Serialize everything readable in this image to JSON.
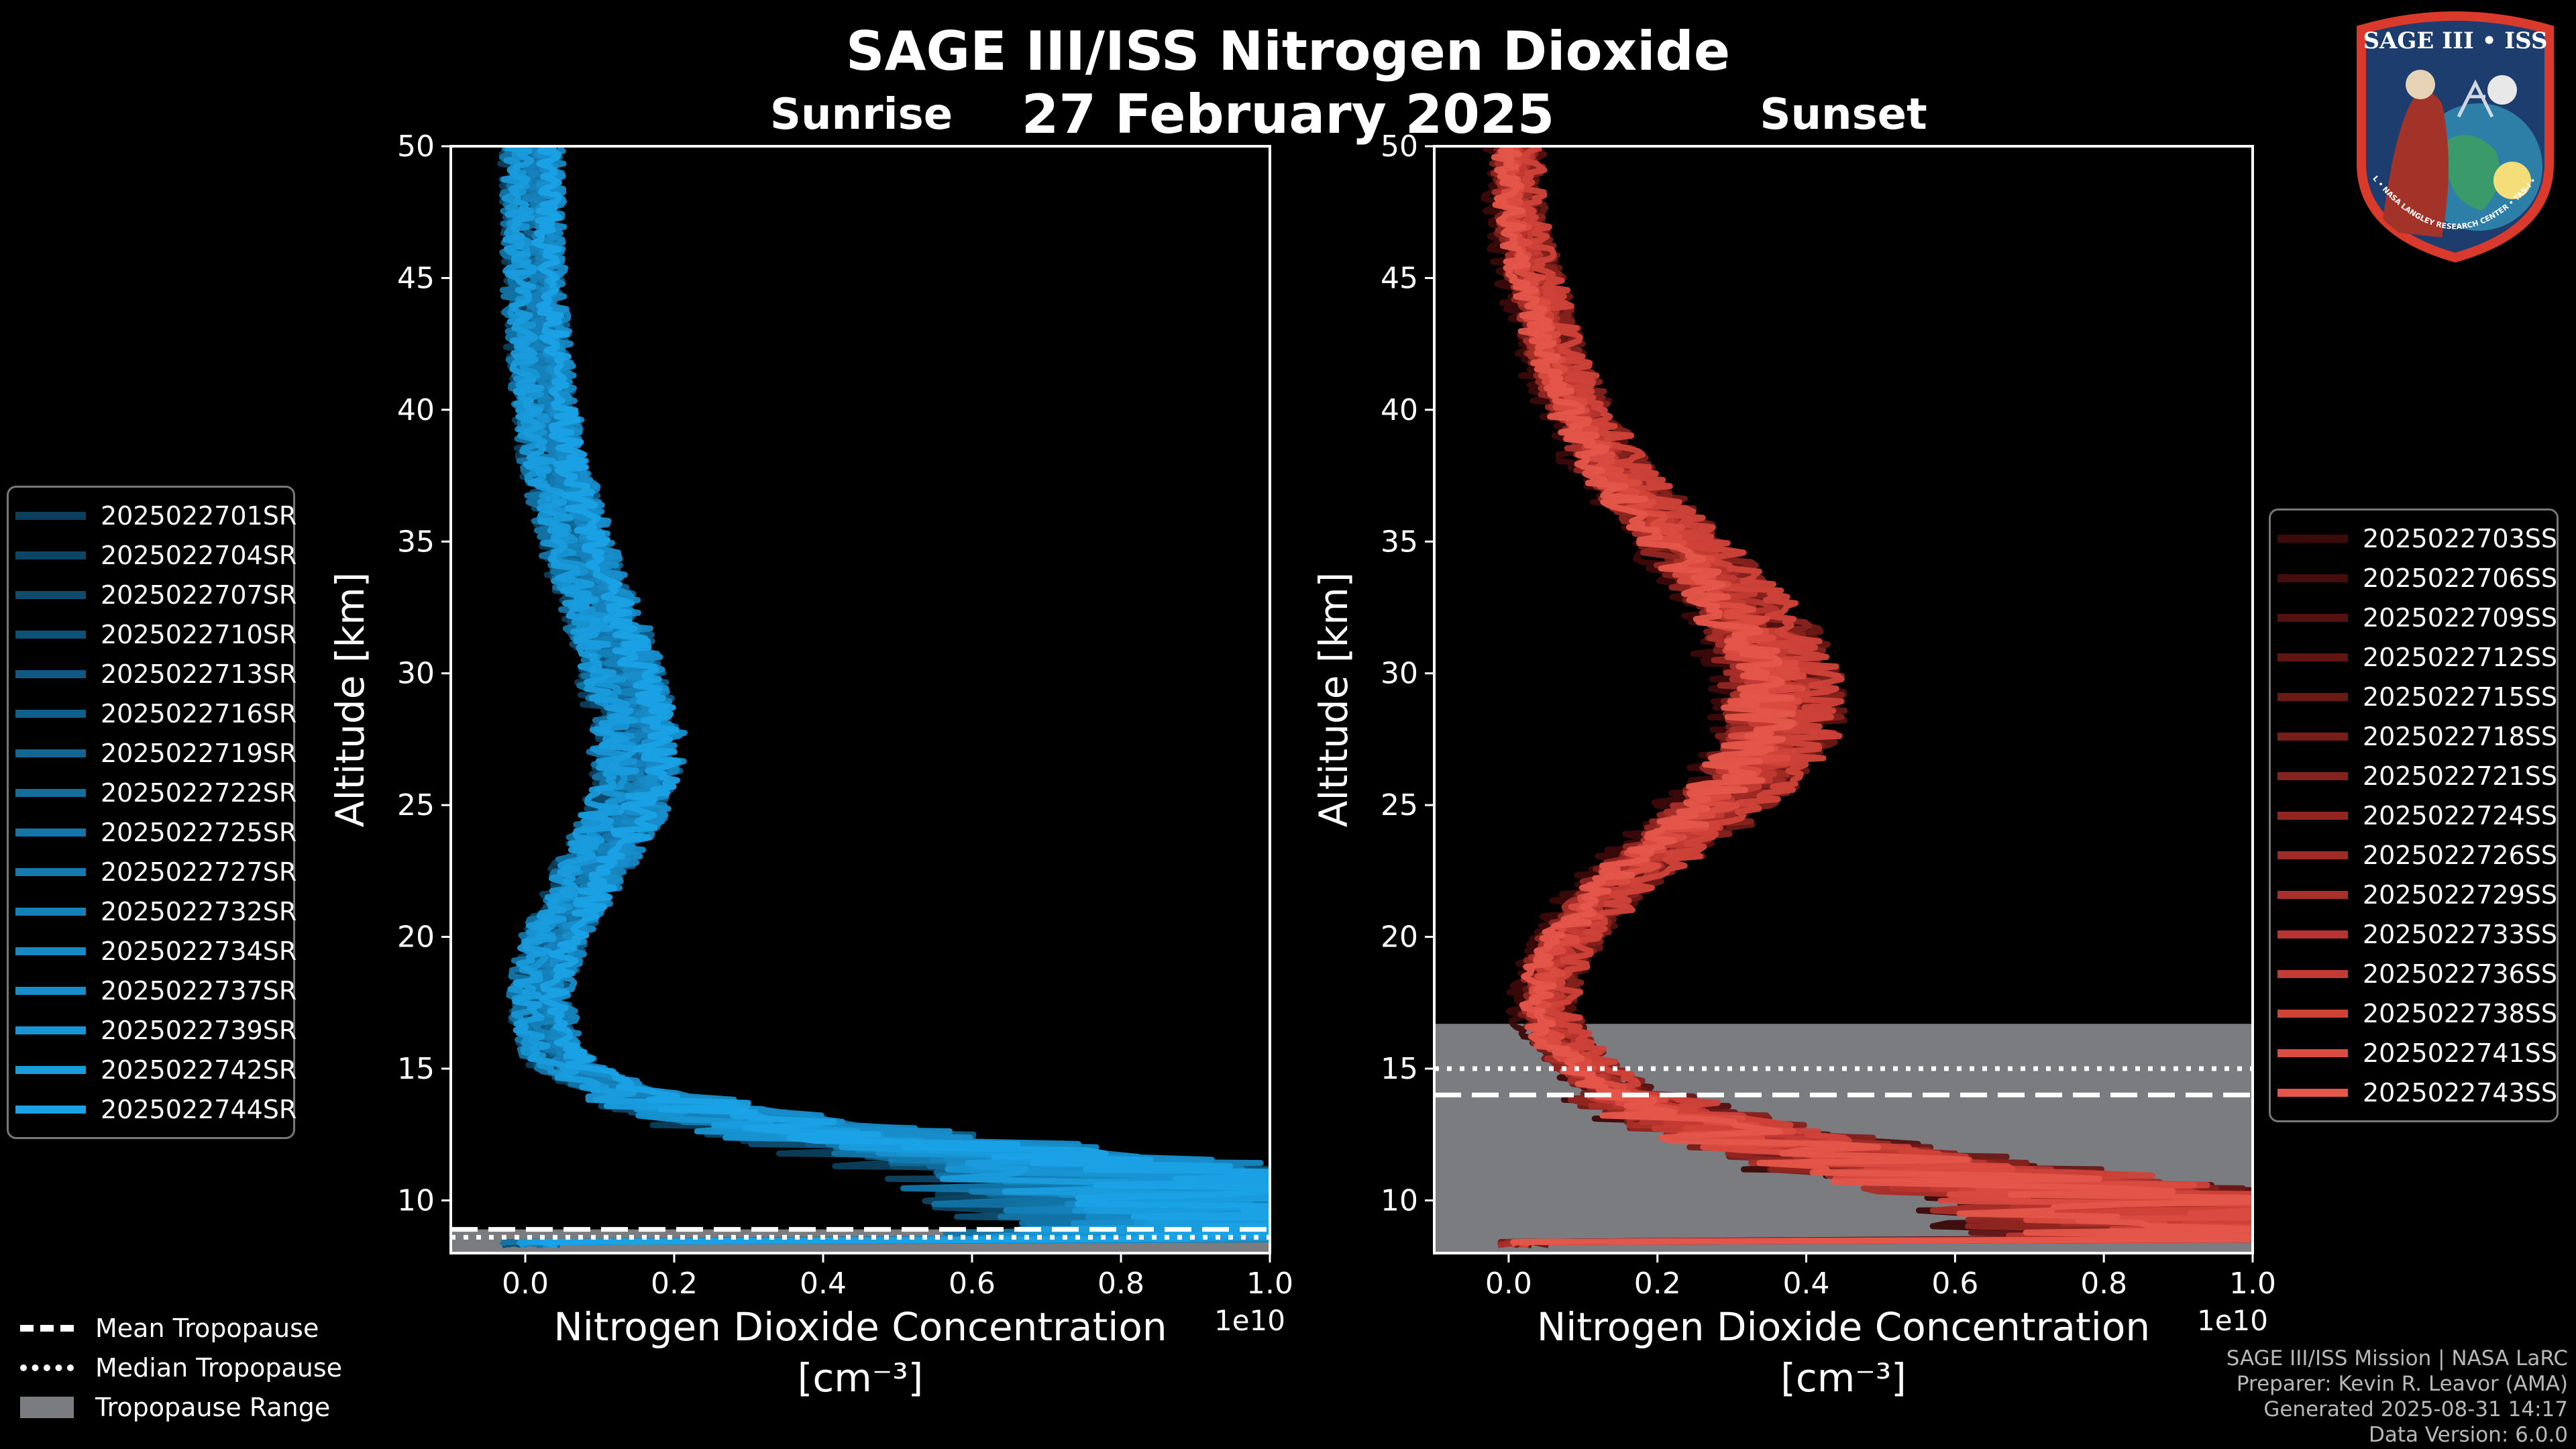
{
  "title": "SAGE III/ISS Nitrogen Dioxide",
  "date": "27 February 2025",
  "logo": {
    "text": "SAGE III • ISS",
    "ring_text": "BALL • NASA LANGLEY RESEARCH CENTER • TAS-I • ESA"
  },
  "colors": {
    "background": "#000000",
    "tropopause_range": "#7b7c80",
    "sunrise_accent": "#1793d5",
    "sunset_accent": "#e5564a"
  },
  "chart_data": [
    {
      "type": "line",
      "panel_title": "Sunrise",
      "xlabel": "Nitrogen Dioxide Concentration",
      "xunit": "[cm⁻³]",
      "x_offset_label": "1e10",
      "ylabel": "Altitude [km]",
      "xlim": [
        -0.1,
        1.0
      ],
      "ylim": [
        8,
        50
      ],
      "x_scale": 10000000000.0,
      "xticks": [
        "0.0",
        "0.2",
        "0.4",
        "0.6",
        "0.8",
        "1.0"
      ],
      "xtick_values": [
        0.0,
        0.2,
        0.4,
        0.6,
        0.8,
        1.0
      ],
      "yticks": [
        "10",
        "15",
        "20",
        "25",
        "30",
        "35",
        "40",
        "45",
        "50"
      ],
      "ytick_values": [
        10,
        15,
        20,
        25,
        30,
        35,
        40,
        45,
        50
      ],
      "profile_altitudes": [
        8.5,
        9,
        10,
        11,
        12,
        13,
        14,
        15,
        16,
        18,
        20,
        22,
        24,
        26,
        28,
        30,
        32,
        34,
        36,
        38,
        40,
        42,
        44,
        46,
        48,
        50
      ],
      "profile_mean": [
        0.95,
        0.95,
        0.9,
        0.8,
        0.55,
        0.3,
        0.15,
        0.06,
        0.03,
        0.02,
        0.04,
        0.08,
        0.12,
        0.15,
        0.15,
        0.13,
        0.11,
        0.08,
        0.06,
        0.04,
        0.03,
        0.02,
        0.015,
        0.012,
        0.01,
        0.01
      ],
      "tropopause": {
        "mean": 8.9,
        "median": 8.6,
        "range": [
          8.0,
          8.9
        ]
      },
      "series": [
        {
          "name": "2025022701SR",
          "color": "#0c3f5c"
        },
        {
          "name": "2025022704SR",
          "color": "#0d4565"
        },
        {
          "name": "2025022707SR",
          "color": "#0e4c6f"
        },
        {
          "name": "2025022710SR",
          "color": "#0f5278"
        },
        {
          "name": "2025022713SR",
          "color": "#105982"
        },
        {
          "name": "2025022716SR",
          "color": "#11608b"
        },
        {
          "name": "2025022719SR",
          "color": "#126694"
        },
        {
          "name": "2025022722SR",
          "color": "#136d9d"
        },
        {
          "name": "2025022725SR",
          "color": "#1374a7"
        },
        {
          "name": "2025022727SR",
          "color": "#147ab0"
        },
        {
          "name": "2025022732SR",
          "color": "#1581b9"
        },
        {
          "name": "2025022734SR",
          "color": "#1688c2"
        },
        {
          "name": "2025022737SR",
          "color": "#178ecb"
        },
        {
          "name": "2025022739SR",
          "color": "#1895d4"
        },
        {
          "name": "2025022742SR",
          "color": "#199cdd"
        },
        {
          "name": "2025022744SR",
          "color": "#1aa2e6"
        }
      ]
    },
    {
      "type": "line",
      "panel_title": "Sunset",
      "xlabel": "Nitrogen Dioxide Concentration",
      "xunit": "[cm⁻³]",
      "x_offset_label": "1e10",
      "ylabel": "Altitude [km]",
      "xlim": [
        -0.1,
        1.0
      ],
      "ylim": [
        8,
        50
      ],
      "x_scale": 10000000000.0,
      "xticks": [
        "0.0",
        "0.2",
        "0.4",
        "0.6",
        "0.8",
        "1.0"
      ],
      "xtick_values": [
        0.0,
        0.2,
        0.4,
        0.6,
        0.8,
        1.0
      ],
      "yticks": [
        "10",
        "15",
        "20",
        "25",
        "30",
        "35",
        "40",
        "45",
        "50"
      ],
      "ytick_values": [
        10,
        15,
        20,
        25,
        30,
        35,
        40,
        45,
        50
      ],
      "profile_altitudes": [
        8.5,
        9,
        10,
        11,
        12,
        13,
        14,
        15,
        16,
        17,
        18,
        19,
        20,
        22,
        24,
        26,
        28,
        30,
        32,
        34,
        36,
        38,
        40,
        42,
        44,
        46,
        48,
        50
      ],
      "profile_mean": [
        0.95,
        0.95,
        0.85,
        0.6,
        0.4,
        0.25,
        0.15,
        0.1,
        0.07,
        0.05,
        0.05,
        0.06,
        0.08,
        0.14,
        0.24,
        0.32,
        0.36,
        0.36,
        0.32,
        0.26,
        0.19,
        0.13,
        0.09,
        0.06,
        0.04,
        0.02,
        0.01,
        0.01
      ],
      "tropopause": {
        "mean": 14.0,
        "median": 15.0,
        "range": [
          8.0,
          16.7
        ]
      },
      "series": [
        {
          "name": "2025022703SS",
          "color": "#3c0a09"
        },
        {
          "name": "2025022706SS",
          "color": "#470d0c"
        },
        {
          "name": "2025022709SS",
          "color": "#53110f"
        },
        {
          "name": "2025022712SS",
          "color": "#601513"
        },
        {
          "name": "2025022715SS",
          "color": "#6c1916"
        },
        {
          "name": "2025022718SS",
          "color": "#781d1a"
        },
        {
          "name": "2025022721SS",
          "color": "#85221d"
        },
        {
          "name": "2025022724SS",
          "color": "#912621"
        },
        {
          "name": "2025022726SS",
          "color": "#9e2b25"
        },
        {
          "name": "2025022729SS",
          "color": "#aa2f29"
        },
        {
          "name": "2025022733SS",
          "color": "#b7352e"
        },
        {
          "name": "2025022736SS",
          "color": "#c33b33"
        },
        {
          "name": "2025022738SS",
          "color": "#cf4239"
        },
        {
          "name": "2025022741SS",
          "color": "#da4b40"
        },
        {
          "name": "2025022743SS",
          "color": "#e5564a"
        }
      ]
    }
  ],
  "bottom_legend": {
    "mean": "Mean Tropopause",
    "median": "Median Tropopause",
    "range": "Tropopause Range"
  },
  "credits": {
    "line1": "SAGE III/ISS Mission | NASA LaRC",
    "line2": "Preparer: Kevin R. Leavor (AMA)",
    "line3": "Generated 2025-08-31 14:17",
    "line4": "Data Version: 6.0.0"
  }
}
